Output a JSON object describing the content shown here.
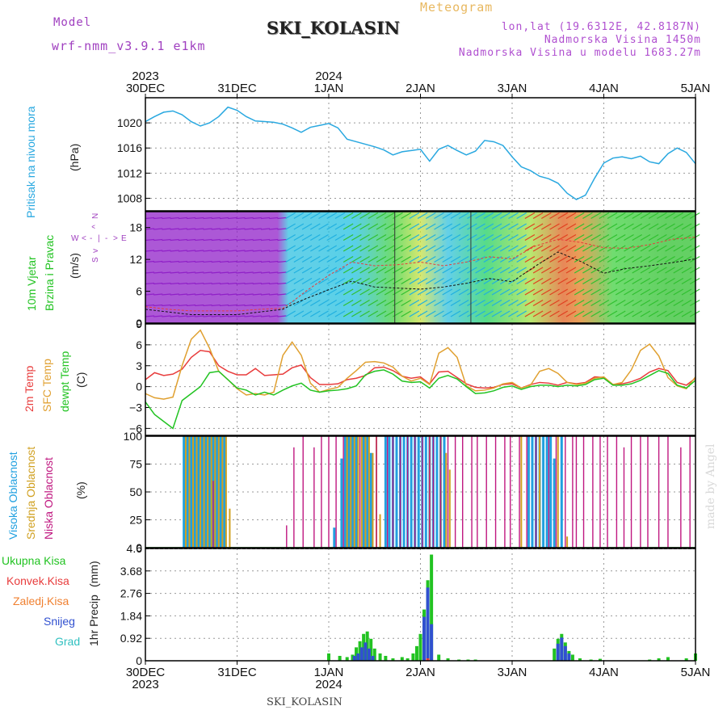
{
  "header": {
    "model_label": "Model",
    "model_name": "wrf-nmm_v3.9.1 e1km",
    "title": "Meteogram",
    "station": "SKI_KOLASIN",
    "lonlat": "lon,lat (19.6312E, 42.8187N)",
    "elevation": "Nadmorska Visina 1450m",
    "model_elevation": "Nadmorska Visina u modelu 1683.27m"
  },
  "footer": {
    "station": "SKI_KOLASIN",
    "credit": "made by Angel"
  },
  "colors": {
    "pressure": "#29a8e0",
    "temp2m": "#e83c3c",
    "sfc_temp": "#e0a030",
    "dewpt": "#22c322",
    "cloud_high": "#20a0e0",
    "cloud_mid": "#d0a020",
    "cloud_low": "#c01880",
    "rain_total": "#22c322",
    "rain_conv": "#e83c3c",
    "freezing": "#f08030",
    "snow": "#3050d0",
    "hail": "#30c0c0",
    "wind": "#22b522",
    "wind_axis": "#a040c0"
  },
  "time_axis": {
    "labels": [
      "30DEC",
      "31DEC",
      "1JAN",
      "2JAN",
      "3JAN",
      "4JAN",
      "5JAN"
    ],
    "years_top": [
      {
        "label": "2023",
        "day": 0
      },
      {
        "label": "2024",
        "day": 2
      }
    ],
    "years_bottom": [
      {
        "label": "2023",
        "day": 0
      },
      {
        "label": "2024",
        "day": 2
      }
    ]
  },
  "wind_direction_legend": {
    "n": "N",
    "s": "S",
    "e": "E",
    "w": "W",
    "arrow_up": "^",
    "arrow_down": "v",
    "arrow_left": "<",
    "arrow_right": ">",
    "bar": "-",
    "pipe": "|"
  },
  "chart_data": [
    {
      "type": "line",
      "name": "pressure",
      "ylabel": "Pritisak na nivou mora",
      "unit": "(hPa)",
      "ylim": [
        1006,
        1024
      ],
      "yticks": [
        1008,
        1012,
        1016,
        1020
      ],
      "x": [
        0,
        0.1,
        0.2,
        0.3,
        0.4,
        0.5,
        0.6,
        0.7,
        0.8,
        0.9,
        1.0,
        1.1,
        1.2,
        1.3,
        1.4,
        1.5,
        1.6,
        1.7,
        1.8,
        1.9,
        2.0,
        2.1,
        2.2,
        2.3,
        2.4,
        2.5,
        2.6,
        2.7,
        2.8,
        2.9,
        3.0,
        3.1,
        3.2,
        3.3,
        3.4,
        3.5,
        3.6,
        3.7,
        3.8,
        3.9,
        4.0,
        4.1,
        4.2,
        4.3,
        4.4,
        4.5,
        4.6,
        4.7,
        4.8,
        4.9,
        5.0,
        5.1,
        5.2,
        5.3,
        5.4,
        5.5,
        5.6,
        5.7,
        5.8,
        5.9,
        6.0
      ],
      "y": [
        1020.2,
        1021,
        1021.7,
        1021.9,
        1021.3,
        1020.2,
        1019.5,
        1020,
        1021,
        1022.5,
        1022,
        1021,
        1020.3,
        1020.2,
        1020.1,
        1019.8,
        1019.2,
        1018.5,
        1019.3,
        1019.6,
        1019.9,
        1019.2,
        1017.4,
        1017,
        1016.6,
        1016.2,
        1015.7,
        1014.9,
        1015.4,
        1015.6,
        1015.8,
        1013.9,
        1015.8,
        1016.4,
        1015.6,
        1014.9,
        1015.5,
        1017.2,
        1017,
        1016.4,
        1014.6,
        1013,
        1012.4,
        1011.5,
        1011.1,
        1010.4,
        1008.8,
        1007.8,
        1008.5,
        1011.2,
        1013.6,
        1014.4,
        1014.6,
        1014.3,
        1014.7,
        1013.8,
        1013.5,
        1015.1,
        1016.0,
        1015.3,
        1013.5
      ]
    },
    {
      "type": "wind",
      "name": "wind",
      "ylabel": "10m Vjetar Brzina i Pravac",
      "unit": "(m/s)",
      "ylim": [
        0,
        21
      ],
      "yticks": [
        0,
        6,
        12,
        18
      ],
      "speed_x": [
        0,
        0.25,
        0.5,
        0.75,
        1.0,
        1.25,
        1.5,
        1.6,
        1.75,
        2.0,
        2.25,
        2.5,
        2.75,
        3.0,
        3.25,
        3.5,
        3.75,
        4.0,
        4.25,
        4.5,
        4.75,
        5.0,
        5.25,
        5.5,
        5.75,
        6.0
      ],
      "speed": [
        2.6,
        2.1,
        1.6,
        1.6,
        1.6,
        2.1,
        2.6,
        3.5,
        4.6,
        6.3,
        7.9,
        6.8,
        6.6,
        6.4,
        6.8,
        7.5,
        8.4,
        7.8,
        10.7,
        13.4,
        11.6,
        9.4,
        10.3,
        10.8,
        11.4,
        12.1
      ],
      "gust": [
        3.1,
        2.6,
        2.3,
        2.3,
        2.3,
        2.6,
        2.8,
        4.0,
        6.0,
        9.0,
        11.5,
        10.8,
        11.0,
        11.5,
        10.8,
        11.5,
        12.5,
        12.1,
        14.5,
        15.8,
        15.2,
        14.2,
        14.1,
        14.8,
        15.8,
        16.2
      ]
    },
    {
      "type": "line",
      "name": "temperature",
      "ylabel": "2m Temp SFC Temp dewpt Temp",
      "unit": "(C)",
      "ylim": [
        -7,
        9
      ],
      "yticks": [
        -6,
        -3,
        0,
        3,
        6,
        9
      ],
      "x": [
        0,
        0.1,
        0.2,
        0.3,
        0.4,
        0.5,
        0.6,
        0.7,
        0.8,
        0.9,
        1.0,
        1.1,
        1.2,
        1.3,
        1.4,
        1.5,
        1.6,
        1.7,
        1.8,
        1.9,
        2.0,
        2.1,
        2.2,
        2.3,
        2.4,
        2.5,
        2.6,
        2.7,
        2.8,
        2.9,
        3.0,
        3.1,
        3.2,
        3.3,
        3.4,
        3.5,
        3.6,
        3.7,
        3.8,
        3.9,
        4.0,
        4.1,
        4.2,
        4.3,
        4.4,
        4.5,
        4.6,
        4.7,
        4.8,
        4.9,
        5.0,
        5.1,
        5.2,
        5.3,
        5.4,
        5.5,
        5.6,
        5.7,
        5.8,
        5.9,
        6.0
      ],
      "series": [
        {
          "name": "2m Temp",
          "color": "temp2m",
          "values": [
            1,
            2,
            1.6,
            1.8,
            2.5,
            4.2,
            5.2,
            5,
            3,
            2.2,
            1.7,
            1.7,
            2.6,
            1.6,
            1.7,
            1.8,
            2.7,
            3.1,
            1.3,
            0.3,
            0.3,
            0.4,
            1.0,
            1.2,
            1.6,
            2.7,
            2.8,
            2.3,
            1.5,
            1.2,
            1.4,
            0.4,
            2.1,
            2.2,
            1.3,
            0.4,
            -0.1,
            -0.2,
            -0.1,
            0.3,
            0.4,
            -0.2,
            0.3,
            0.6,
            0.5,
            0.2,
            0.6,
            0.4,
            0.6,
            1.4,
            1.3,
            0.3,
            0.4,
            0.7,
            1.2,
            2.1,
            2.6,
            2.3,
            0.6,
            0.2,
            1.2
          ]
        },
        {
          "name": "SFC Temp",
          "color": "sfc_temp",
          "values": [
            -1,
            -1.6,
            -1.8,
            -1.5,
            3,
            6.8,
            8.1,
            5.5,
            2.2,
            1.0,
            -0.3,
            -1.2,
            -1.0,
            -1.2,
            -0.8,
            4.5,
            6.4,
            4.5,
            0.5,
            -0.8,
            -0.4,
            -0.1,
            1.2,
            2.3,
            3.5,
            3.6,
            3.4,
            2.8,
            1.5,
            0.8,
            1.2,
            0.3,
            4.8,
            5.6,
            4.2,
            0.1,
            -0.6,
            -0.5,
            -0.2,
            0.4,
            0.6,
            -0.2,
            0.2,
            2.2,
            2.6,
            1.9,
            0.6,
            0.3,
            0.5,
            1.2,
            1.4,
            0.3,
            0.6,
            2.4,
            5.2,
            6.1,
            4.4,
            1.3,
            0.1,
            -0.3,
            1.4
          ]
        },
        {
          "name": "dewpt Temp",
          "color": "dewpt",
          "values": [
            -2.2,
            -4,
            -5,
            -6,
            -2,
            -1,
            0,
            2,
            2.2,
            1.0,
            -0.2,
            -0.5,
            -1.2,
            -0.8,
            -1.2,
            -0.5,
            0.1,
            0.5,
            -0.5,
            -0.8,
            -0.6,
            -0.5,
            -0.3,
            0.1,
            1.7,
            2.2,
            2.4,
            1.8,
            0.8,
            0.6,
            0.7,
            -0.2,
            1.2,
            1.6,
            1.1,
            0,
            -1.0,
            -0.9,
            -0.6,
            -0.1,
            0.1,
            -0.4,
            0,
            0.2,
            0.2,
            0,
            0.2,
            0.1,
            0.3,
            1.0,
            1.2,
            0.2,
            0.2,
            0.4,
            0.9,
            1.6,
            2.3,
            1.9,
            0.2,
            -0.2,
            0.9
          ]
        }
      ]
    },
    {
      "type": "bar",
      "name": "cloud_cover",
      "ylabel": "Visoka Oblacnost Srednja Oblacnost Niska Oblacnost",
      "unit": "(%)",
      "ylim": [
        0,
        100
      ],
      "yticks": [
        0,
        25,
        50,
        75,
        100
      ],
      "series": [
        {
          "name": "Visoka Oblacnost",
          "color": "cloud_high",
          "x": [
            0.42,
            0.46,
            0.5,
            0.54,
            0.58,
            0.62,
            0.66,
            0.7,
            0.74,
            0.78,
            0.82,
            0.86,
            2.06,
            2.14,
            2.18,
            2.22,
            2.26,
            2.3,
            2.38,
            2.42,
            2.46,
            2.62,
            2.66,
            2.7,
            2.74,
            2.78,
            2.82,
            2.86,
            2.9,
            2.94,
            2.98,
            3.02,
            3.06,
            3.1,
            3.14,
            3.18,
            3.22,
            3.26,
            4.18,
            4.22,
            4.26,
            4.3,
            4.34,
            4.38,
            4.42,
            4.46,
            4.54
          ],
          "values": [
            100,
            100,
            100,
            100,
            100,
            100,
            100,
            100,
            100,
            100,
            100,
            100,
            18,
            80,
            100,
            100,
            100,
            100,
            100,
            100,
            85,
            100,
            100,
            100,
            100,
            100,
            100,
            100,
            100,
            100,
            100,
            100,
            100,
            100,
            100,
            100,
            100,
            100,
            100,
            100,
            100,
            100,
            100,
            100,
            100,
            80,
            100
          ]
        },
        {
          "name": "Srednja Oblacnost",
          "color": "cloud_mid",
          "x": [
            0.44,
            0.48,
            0.52,
            0.56,
            0.6,
            0.64,
            0.68,
            0.72,
            0.76,
            0.8,
            0.84,
            0.88,
            0.92,
            2.2,
            2.24,
            2.28,
            2.32,
            2.36,
            2.4,
            2.44,
            2.48,
            2.52,
            2.56,
            3.1,
            3.22,
            3.28,
            3.32,
            4.1,
            4.3,
            4.5,
            4.6
          ],
          "values": [
            100,
            100,
            100,
            100,
            100,
            100,
            100,
            100,
            100,
            100,
            100,
            100,
            35,
            100,
            100,
            100,
            100,
            100,
            100,
            100,
            85,
            100,
            30,
            100,
            100,
            85,
            70,
            100,
            100,
            100,
            10
          ]
        },
        {
          "name": "Niska Oblacnost",
          "color": "cloud_low",
          "x": [
            0.74,
            1.54,
            1.62,
            1.72,
            1.84,
            1.92,
            2.0,
            2.08,
            2.16,
            2.34,
            2.52,
            2.64,
            2.7,
            2.78,
            2.86,
            2.94,
            3.02,
            3.1,
            3.14,
            3.22,
            3.3,
            3.38,
            3.46,
            3.56,
            3.62,
            3.72,
            3.82,
            3.92,
            3.98,
            4.08,
            4.16,
            4.26,
            4.4,
            4.48,
            4.58,
            4.66,
            4.7,
            4.78,
            4.88,
            4.96,
            5.04,
            5.14,
            5.22,
            5.3,
            5.4,
            5.48,
            5.6,
            5.7,
            5.84,
            5.94
          ],
          "values": [
            60,
            20,
            90,
            100,
            90,
            100,
            100,
            100,
            100,
            100,
            100,
            100,
            100,
            100,
            100,
            100,
            100,
            100,
            100,
            100,
            100,
            100,
            100,
            100,
            100,
            100,
            100,
            100,
            100,
            100,
            100,
            100,
            100,
            100,
            100,
            100,
            100,
            100,
            100,
            100,
            100,
            100,
            90,
            100,
            100,
            100,
            100,
            100,
            90,
            100
          ]
        }
      ]
    },
    {
      "type": "bar",
      "name": "precipitation",
      "ylabel": "1hr Precip",
      "unit": "(mm)",
      "ylim": [
        0,
        4.6
      ],
      "yticks": [
        0,
        0.92,
        1.84,
        2.76,
        3.68,
        4.6
      ],
      "legend": [
        "Ukupna Kisa",
        "Konvek.Kisa",
        "Zaledj.Kisa",
        "Snijeg",
        "Grad"
      ],
      "series": [
        {
          "name": "Ukupna Kisa",
          "color": "rain_total",
          "x": [
            2.0,
            2.12,
            2.2,
            2.26,
            2.3,
            2.34,
            2.38,
            2.42,
            2.46,
            2.5,
            2.56,
            2.62,
            2.7,
            2.8,
            2.86,
            2.92,
            2.96,
            3.0,
            3.04,
            3.08,
            3.12,
            3.2,
            3.3,
            3.42,
            3.52,
            3.6,
            4.46,
            4.5,
            4.54,
            4.58,
            4.62,
            4.66,
            4.74,
            4.86,
            4.96,
            5.5,
            5.6,
            5.7,
            5.9,
            6.0
          ],
          "values": [
            0.3,
            0.2,
            0.15,
            0.25,
            0.55,
            0.8,
            1.1,
            1.2,
            0.9,
            0.5,
            0.3,
            0.2,
            0.1,
            0.15,
            0.1,
            0.3,
            0.6,
            1.1,
            2.1,
            3.3,
            4.35,
            0.25,
            0.1,
            0.05,
            0.05,
            0.05,
            0.5,
            0.9,
            1.1,
            0.75,
            0.4,
            0.25,
            0.1,
            0.05,
            0.08,
            0.05,
            0.1,
            0.15,
            0.1,
            0.3
          ]
        },
        {
          "name": "Snijeg",
          "color": "snow",
          "x": [
            2.28,
            2.32,
            2.36,
            2.4,
            2.44,
            2.48,
            3.04,
            3.08,
            3.12,
            4.5,
            4.54,
            4.58,
            4.62
          ],
          "values": [
            0.2,
            0.3,
            0.55,
            0.75,
            0.5,
            0.2,
            1.8,
            3.0,
            1.5,
            0.7,
            0.95,
            0.6,
            0.3
          ]
        },
        {
          "name": "Konvek.Kisa",
          "color": "rain_conv",
          "x": [
            3.08
          ],
          "values": [
            0.1
          ]
        }
      ]
    }
  ]
}
